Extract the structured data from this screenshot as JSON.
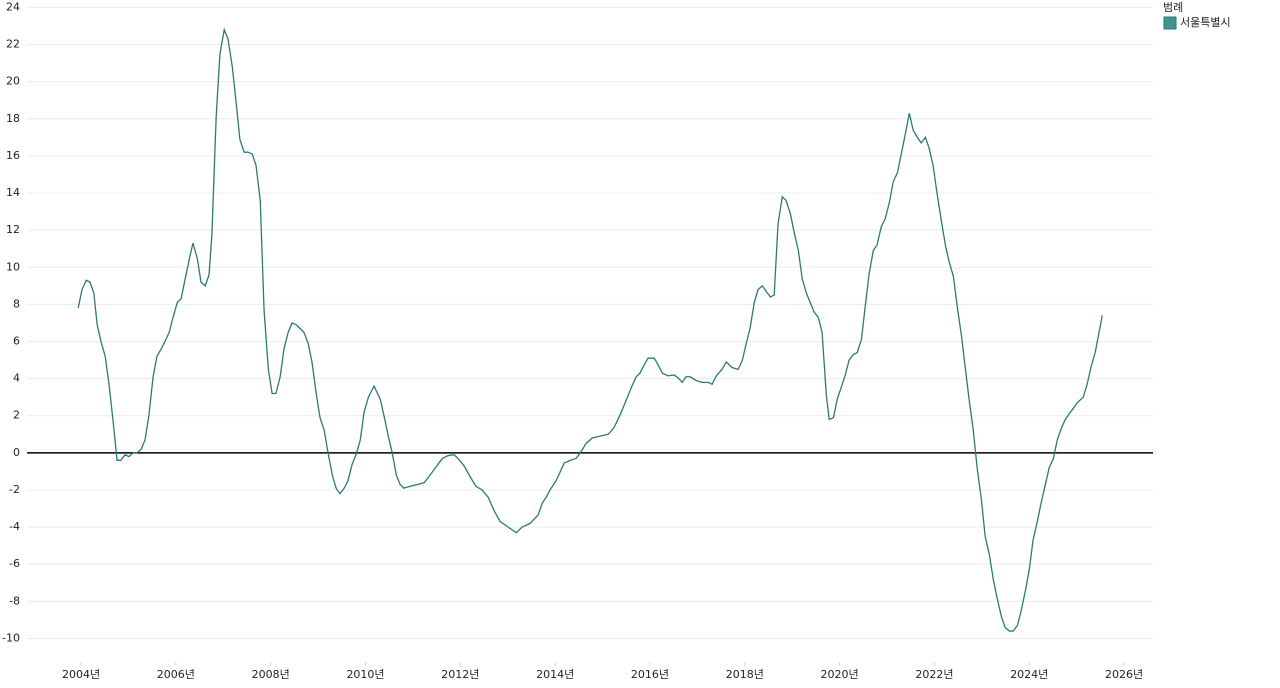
{
  "chart_data": {
    "type": "line",
    "legend_title": "범례",
    "legend": "top-right",
    "grid": true,
    "xlim": [
      2002.86,
      2026.61
    ],
    "ylim": [
      -11.3,
      24.4
    ],
    "xticks": [
      {
        "value": 2004,
        "label": "2004년"
      },
      {
        "value": 2006,
        "label": "2006년"
      },
      {
        "value": 2008,
        "label": "2008년"
      },
      {
        "value": 2010,
        "label": "2010년"
      },
      {
        "value": 2012,
        "label": "2012년"
      },
      {
        "value": 2014,
        "label": "2014년"
      },
      {
        "value": 2016,
        "label": "2016년"
      },
      {
        "value": 2018,
        "label": "2018년"
      },
      {
        "value": 2020,
        "label": "2020년"
      },
      {
        "value": 2022,
        "label": "2022년"
      },
      {
        "value": 2024,
        "label": "2024년"
      },
      {
        "value": 2026,
        "label": "2026년"
      }
    ],
    "yticks": [
      -10,
      -8,
      -6,
      -4,
      -2,
      0,
      2,
      4,
      6,
      8,
      10,
      12,
      14,
      16,
      18,
      20,
      22,
      24
    ],
    "x": [
      2003.94,
      2004.02,
      2004.11,
      2004.19,
      2004.27,
      2004.34,
      2004.42,
      2004.51,
      2004.59,
      2004.68,
      2004.76,
      2004.84,
      2004.93,
      2005.01,
      2005.1,
      2005.18,
      2005.27,
      2005.35,
      2005.43,
      2005.52,
      2005.6,
      2005.69,
      2005.77,
      2005.86,
      2005.94,
      2006.03,
      2006.11,
      2006.19,
      2006.28,
      2006.36,
      2006.45,
      2006.53,
      2006.62,
      2006.7,
      2006.76,
      2006.85,
      2006.93,
      2007.02,
      2007.1,
      2007.19,
      2007.27,
      2007.35,
      2007.44,
      2007.52,
      2007.61,
      2007.69,
      2007.78,
      2007.86,
      2007.95,
      2008.03,
      2008.11,
      2008.2,
      2008.28,
      2008.37,
      2008.45,
      2008.54,
      2008.62,
      2008.7,
      2008.79,
      2008.87,
      2008.96,
      2009.04,
      2009.13,
      2009.21,
      2009.3,
      2009.38,
      2009.46,
      2009.55,
      2009.63,
      2009.72,
      2009.8,
      2009.89,
      2009.97,
      2010.06,
      2010.18,
      2010.31,
      2010.39,
      2010.48,
      2010.56,
      2010.65,
      2010.73,
      2010.81,
      2010.94,
      2011.11,
      2011.24,
      2011.36,
      2011.49,
      2011.62,
      2011.74,
      2011.87,
      2011.95,
      2012.08,
      2012.21,
      2012.33,
      2012.46,
      2012.59,
      2012.71,
      2012.84,
      2013.01,
      2013.18,
      2013.3,
      2013.47,
      2013.64,
      2013.73,
      2013.81,
      2013.89,
      2014.02,
      2014.11,
      2014.19,
      2014.32,
      2014.44,
      2014.53,
      2014.65,
      2014.78,
      2014.95,
      2015.12,
      2015.24,
      2015.37,
      2015.5,
      2015.62,
      2015.71,
      2015.79,
      2015.88,
      2015.96,
      2016.09,
      2016.17,
      2016.26,
      2016.38,
      2016.51,
      2016.59,
      2016.68,
      2016.76,
      2016.85,
      2016.97,
      2017.1,
      2017.23,
      2017.31,
      2017.4,
      2017.52,
      2017.61,
      2017.73,
      2017.86,
      2017.95,
      2018.03,
      2018.11,
      2018.2,
      2018.28,
      2018.37,
      2018.45,
      2018.54,
      2018.62,
      2018.7,
      2018.79,
      2018.87,
      2018.96,
      2019.04,
      2019.13,
      2019.21,
      2019.3,
      2019.38,
      2019.46,
      2019.55,
      2019.63,
      2019.72,
      2019.78,
      2019.87,
      2019.95,
      2020.03,
      2020.12,
      2020.2,
      2020.29,
      2020.37,
      2020.46,
      2020.54,
      2020.62,
      2020.71,
      2020.79,
      2020.88,
      2020.96,
      2021.05,
      2021.13,
      2021.22,
      2021.3,
      2021.38,
      2021.47,
      2021.55,
      2021.64,
      2021.72,
      2021.81,
      2021.89,
      2021.97,
      2022.06,
      2022.14,
      2022.23,
      2022.31,
      2022.4,
      2022.48,
      2022.57,
      2022.65,
      2022.73,
      2022.82,
      2022.9,
      2022.99,
      2023.07,
      2023.16,
      2023.24,
      2023.32,
      2023.41,
      2023.49,
      2023.58,
      2023.66,
      2023.75,
      2023.83,
      2023.92,
      2024.0,
      2024.08,
      2024.17,
      2024.25,
      2024.34,
      2024.42,
      2024.51,
      2024.59,
      2024.68,
      2024.76,
      2024.84,
      2024.93,
      2025.01,
      2025.14,
      2025.22,
      2025.31,
      2025.39,
      2025.48,
      2025.54
    ],
    "series": [
      {
        "name": "서울특별시",
        "color": "#2b7a75",
        "legend_color": "#3f9690",
        "values": [
          7.8,
          8.8,
          9.3,
          9.2,
          8.6,
          6.9,
          6.0,
          5.2,
          3.7,
          1.6,
          -0.4,
          -0.4,
          -0.1,
          -0.2,
          0,
          0,
          0.2,
          0.7,
          2.0,
          4.1,
          5.2,
          5.6,
          6.0,
          6.5,
          7.3,
          8.1,
          8.3,
          9.3,
          10.4,
          11.3,
          10.5,
          9.2,
          9.0,
          9.6,
          11.8,
          18.1,
          21.5,
          22.8,
          22.3,
          20.8,
          18.9,
          16.9,
          16.2,
          16.2,
          16.1,
          15.5,
          13.6,
          7.7,
          4.5,
          3.2,
          3.2,
          4.1,
          5.6,
          6.5,
          7.0,
          6.9,
          6.7,
          6.5,
          5.9,
          4.9,
          3.2,
          1.9,
          1.2,
          0,
          -1.2,
          -1.9,
          -2.2,
          -1.9,
          -1.5,
          -0.6,
          -0.1,
          0.7,
          2.2,
          3.0,
          3.6,
          2.9,
          2.0,
          0.9,
          0.05,
          -1.2,
          -1.7,
          -1.9,
          -1.8,
          -1.7,
          -1.6,
          -1.2,
          -0.75,
          -0.3,
          -0.15,
          -0.1,
          -0.3,
          -0.7,
          -1.3,
          -1.8,
          -2.0,
          -2.4,
          -3.1,
          -3.7,
          -4.0,
          -4.3,
          -4.0,
          -3.8,
          -3.35,
          -2.7,
          -2.4,
          -2.0,
          -1.5,
          -1.0,
          -0.55,
          -0.4,
          -0.3,
          0,
          0.5,
          0.8,
          0.9,
          1.0,
          1.35,
          2.05,
          2.85,
          3.6,
          4.1,
          4.3,
          4.75,
          5.1,
          5.1,
          4.75,
          4.3,
          4.15,
          4.2,
          4.05,
          3.8,
          4.1,
          4.1,
          3.9,
          3.8,
          3.8,
          3.7,
          4.15,
          4.5,
          4.9,
          4.6,
          4.5,
          5.0,
          5.9,
          6.7,
          8.1,
          8.8,
          9.0,
          8.7,
          8.4,
          8.5,
          12.3,
          13.8,
          13.6,
          12.9,
          11.9,
          10.9,
          9.4,
          8.6,
          8.1,
          7.6,
          7.3,
          6.5,
          3.1,
          1.8,
          1.9,
          2.9,
          3.5,
          4.2,
          5.0,
          5.3,
          5.4,
          6.1,
          7.9,
          9.6,
          10.9,
          11.2,
          12.2,
          12.6,
          13.5,
          14.6,
          15.1,
          16.1,
          17.1,
          18.3,
          17.4,
          17.0,
          16.7,
          17.0,
          16.4,
          15.5,
          13.9,
          12.6,
          11.2,
          10.3,
          9.5,
          7.9,
          6.3,
          4.6,
          2.9,
          1.2,
          -0.8,
          -2.5,
          -4.5,
          -5.5,
          -6.8,
          -7.8,
          -8.8,
          -9.4,
          -9.6,
          -9.6,
          -9.3,
          -8.5,
          -7.4,
          -6.3,
          -4.7,
          -3.7,
          -2.7,
          -1.7,
          -0.8,
          -0.3,
          0.7,
          1.35,
          1.8,
          2.1,
          2.4,
          2.7,
          3.0,
          3.7,
          4.7,
          5.4,
          6.6,
          7.4
        ]
      }
    ]
  }
}
